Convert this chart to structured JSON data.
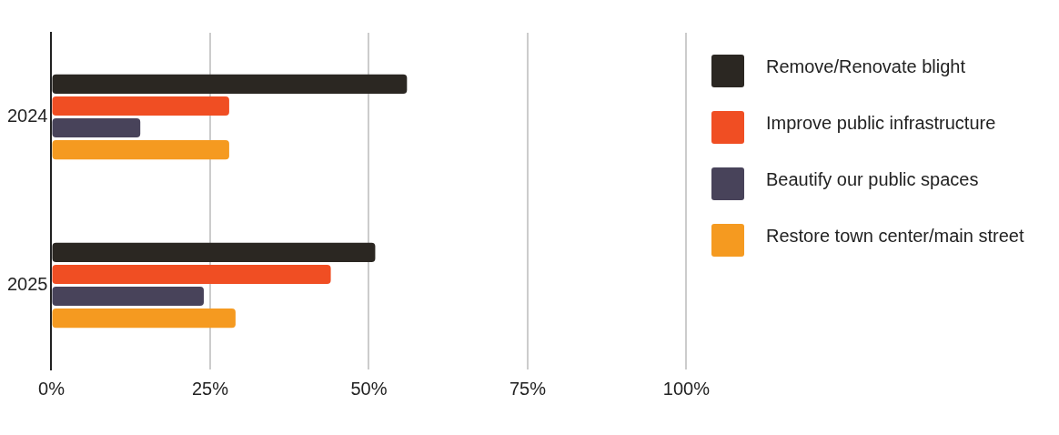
{
  "chart_data": {
    "type": "bar",
    "orientation": "horizontal",
    "categories": [
      "2024",
      "2025"
    ],
    "series": [
      {
        "name": "Remove/Renovate blight",
        "color": "#2b2722",
        "values": [
          56,
          51
        ]
      },
      {
        "name": "Improve public infrastructure",
        "color": "#f04e23",
        "values": [
          28,
          44
        ]
      },
      {
        "name": "Beautify our public spaces",
        "color": "#48435a",
        "values": [
          14,
          24
        ]
      },
      {
        "name": "Restore town center/main street",
        "color": "#f59a20",
        "values": [
          28,
          29
        ]
      }
    ],
    "xlim": [
      0,
      100
    ],
    "xticks": [
      {
        "value": 0,
        "label": "0%"
      },
      {
        "value": 25,
        "label": "25%"
      },
      {
        "value": 50,
        "label": "50%"
      },
      {
        "value": 75,
        "label": "75%"
      },
      {
        "value": 100,
        "label": "100%"
      }
    ],
    "grid": "x",
    "legend": "right"
  }
}
